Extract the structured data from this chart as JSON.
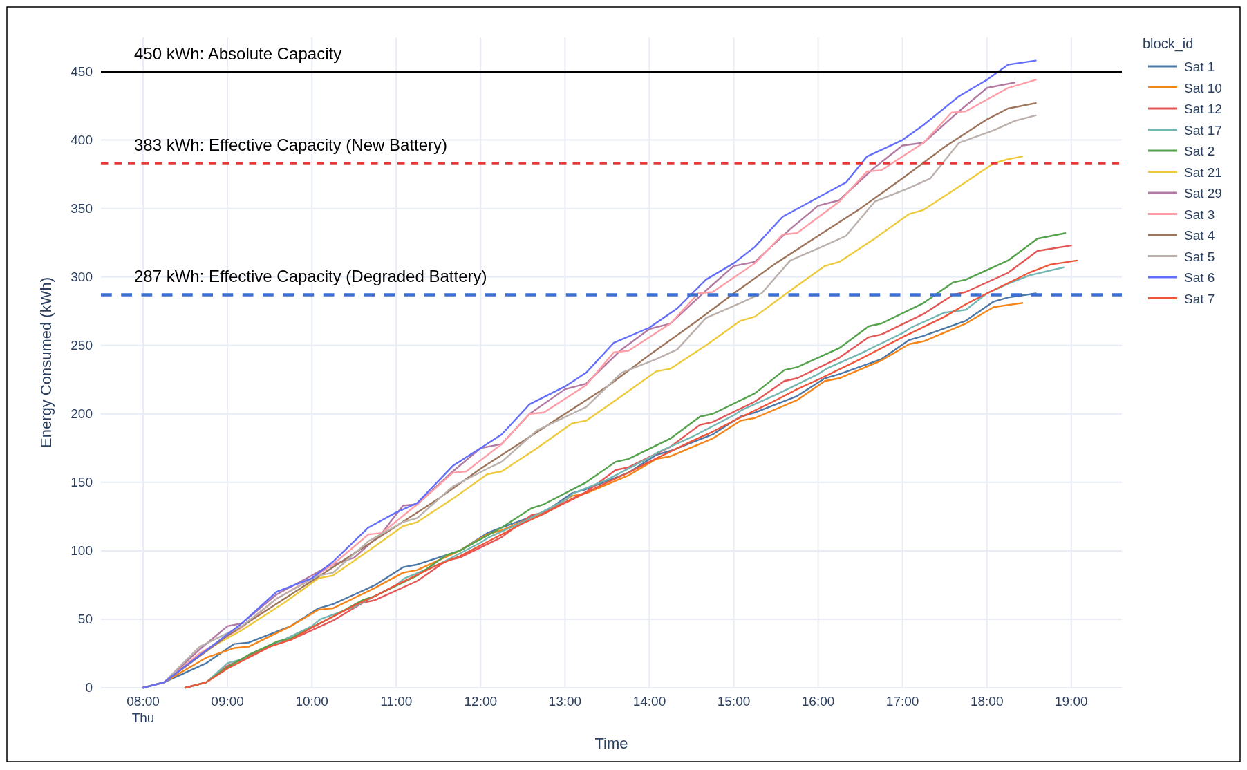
{
  "chart_data": {
    "type": "line",
    "xlabel": "Time",
    "ylabel": "Energy Consumed (kWh)",
    "legend_title": "block_id",
    "legend": "right",
    "grid": true,
    "line_style": "solid",
    "marker": "none",
    "xlim": [
      7.5,
      19.6
    ],
    "ylim": [
      0,
      475
    ],
    "xticks": [
      {
        "value": 8,
        "label": "08:00\nThu"
      },
      {
        "value": 9,
        "label": "09:00"
      },
      {
        "value": 10,
        "label": "10:00"
      },
      {
        "value": 11,
        "label": "11:00"
      },
      {
        "value": 12,
        "label": "12:00"
      },
      {
        "value": 13,
        "label": "13:00"
      },
      {
        "value": 14,
        "label": "14:00"
      },
      {
        "value": 15,
        "label": "15:00"
      },
      {
        "value": 16,
        "label": "16:00"
      },
      {
        "value": 17,
        "label": "17:00"
      },
      {
        "value": 18,
        "label": "18:00"
      },
      {
        "value": 19,
        "label": "19:00"
      }
    ],
    "yticks": [
      0,
      50,
      100,
      150,
      200,
      250,
      300,
      350,
      400,
      450
    ],
    "ref_lines": [
      {
        "axis": "y",
        "value": 450,
        "label": "450 kWh: Absolute Capacity",
        "color": "#000000",
        "line_style": "solid"
      },
      {
        "axis": "y",
        "value": 383,
        "label": "383 kWh: Effective Capacity (New Battery)",
        "color": "#e53935",
        "line_style": "dashed"
      },
      {
        "axis": "y",
        "value": 287,
        "label": "287 kWh: Effective Capacity (Degraded Battery)",
        "color": "#3d6fd1",
        "line_style": "dashed"
      }
    ],
    "series": [
      {
        "name": "Sat 1",
        "color": "#4c78a8",
        "x": [
          8,
          8.25,
          8.75,
          9.08,
          9.25,
          9.75,
          10.08,
          10.25,
          10.75,
          11.08,
          11.25,
          11.75,
          12.08,
          12.25,
          12.75,
          13.08,
          13.25,
          13.75,
          14.08,
          14.25,
          14.75,
          15.08,
          15.25,
          15.75,
          16.08,
          16.25,
          16.75,
          17.08,
          17.25,
          17.75,
          18.08,
          18.25,
          18.58
        ],
        "values": [
          0,
          4,
          18,
          32,
          33,
          45,
          58,
          61,
          75,
          88,
          90,
          100,
          113,
          117,
          128,
          142,
          145,
          157,
          170,
          173,
          185,
          198,
          201,
          213,
          226,
          229,
          240,
          254,
          257,
          268,
          282,
          285,
          288
        ]
      },
      {
        "name": "Sat 10",
        "color": "#f58518",
        "x": [
          8,
          8.25,
          8.75,
          9.08,
          9.25,
          9.75,
          10.08,
          10.25,
          10.75,
          11.08,
          11.25,
          11.75,
          12.08,
          12.25,
          12.75,
          13.08,
          13.25,
          13.75,
          14.08,
          14.25,
          14.75,
          15.08,
          15.25,
          15.75,
          16.08,
          16.25,
          16.75,
          17.08,
          17.25,
          17.75,
          18.08,
          18.42
        ],
        "values": [
          0,
          4,
          22,
          29,
          30,
          45,
          57,
          58,
          73,
          84,
          86,
          100,
          112,
          115,
          128,
          140,
          142,
          155,
          167,
          169,
          182,
          195,
          197,
          210,
          224,
          226,
          239,
          251,
          253,
          266,
          278,
          281
        ]
      },
      {
        "name": "Sat 12",
        "color": "#e45756",
        "x": [
          8.5,
          8.75,
          9,
          9.25,
          9.6,
          9.75,
          10.25,
          10.6,
          10.75,
          11.25,
          11.6,
          11.75,
          12.25,
          12.6,
          12.75,
          13.25,
          13.6,
          13.75,
          14.25,
          14.6,
          14.75,
          15.25,
          15.6,
          15.75,
          16.25,
          16.6,
          16.75,
          17.25,
          17.6,
          17.75,
          18.25,
          18.6,
          19
        ],
        "values": [
          0,
          4,
          16,
          23,
          33,
          35,
          49,
          62,
          64,
          78,
          93,
          95,
          110,
          126,
          128,
          143,
          159,
          161,
          176,
          192,
          194,
          209,
          224,
          226,
          241,
          256,
          258,
          273,
          287,
          289,
          303,
          319,
          323
        ]
      },
      {
        "name": "Sat 17",
        "color": "#72b7b2",
        "x": [
          8.5,
          8.75,
          9,
          9.25,
          9.5,
          10,
          10.1,
          10.5,
          11,
          11.1,
          11.5,
          12,
          12.1,
          12.5,
          13,
          13.1,
          13.5,
          14,
          14.1,
          14.5,
          15,
          15.1,
          15.5,
          16,
          16.1,
          16.5,
          17,
          17.1,
          17.5,
          17.75,
          18,
          18.25,
          18.5,
          18.91
        ],
        "values": [
          0,
          4,
          18,
          22,
          30,
          45,
          50,
          59,
          75,
          80,
          90,
          106,
          110,
          121,
          137,
          142,
          152,
          168,
          172,
          183,
          199,
          203,
          214,
          229,
          233,
          244,
          259,
          263,
          274,
          276,
          288,
          295,
          301,
          307
        ]
      },
      {
        "name": "Sat 2",
        "color": "#54a24b",
        "x": [
          8.5,
          8.75,
          9,
          9.25,
          9.6,
          9.75,
          10.25,
          10.6,
          10.75,
          11.25,
          11.6,
          11.75,
          12.25,
          12.6,
          12.75,
          13.25,
          13.6,
          13.75,
          14.25,
          14.6,
          14.75,
          15.25,
          15.6,
          15.75,
          16.25,
          16.6,
          16.75,
          17.25,
          17.6,
          17.75,
          18.25,
          18.6,
          18.93
        ],
        "values": [
          0,
          4,
          15,
          24,
          34,
          36,
          52,
          64,
          67,
          82,
          97,
          100,
          117,
          131,
          134,
          150,
          165,
          167,
          182,
          198,
          200,
          215,
          232,
          234,
          248,
          264,
          266,
          281,
          296,
          298,
          312,
          328,
          332
        ]
      },
      {
        "name": "Sat 21",
        "color": "#eeca3b",
        "x": [
          8,
          8.25,
          8.67,
          9.17,
          9.67,
          10.08,
          10.25,
          10.67,
          11.08,
          11.25,
          11.67,
          12.08,
          12.25,
          12.67,
          13.08,
          13.25,
          13.67,
          14.08,
          14.25,
          14.67,
          15.08,
          15.25,
          15.67,
          16.08,
          16.25,
          16.67,
          17.08,
          17.25,
          17.67,
          18.08,
          18.25,
          18.42
        ],
        "values": [
          0,
          4,
          25,
          42,
          62,
          80,
          82,
          100,
          118,
          121,
          138,
          156,
          158,
          175,
          193,
          195,
          213,
          231,
          233,
          250,
          268,
          271,
          290,
          308,
          311,
          328,
          346,
          349,
          366,
          383,
          386,
          388
        ]
      },
      {
        "name": "Sat 29",
        "color": "#b279a2",
        "x": [
          8,
          8.25,
          8.67,
          9,
          9.17,
          9.58,
          10,
          10.17,
          10.5,
          10.83,
          11.08,
          11.25,
          11.67,
          12,
          12.25,
          12.58,
          13,
          13.25,
          13.67,
          14,
          14.25,
          14.67,
          15,
          15.25,
          15.67,
          16,
          16.25,
          16.67,
          17,
          17.25,
          17.67,
          18,
          18.33
        ],
        "values": [
          0,
          4,
          28,
          45,
          47,
          68,
          82,
          88,
          95,
          113,
          133,
          134,
          158,
          175,
          178,
          200,
          218,
          222,
          247,
          262,
          266,
          290,
          308,
          311,
          335,
          352,
          356,
          380,
          396,
          398,
          421,
          438,
          442
        ]
      },
      {
        "name": "Sat 3",
        "color": "#ff9da6",
        "x": [
          8,
          8.25,
          8.67,
          9.17,
          9.58,
          10,
          10.25,
          10.67,
          10.83,
          11.25,
          11.67,
          11.83,
          12.25,
          12.58,
          12.75,
          13.25,
          13.58,
          13.75,
          14.25,
          14.58,
          14.75,
          15.25,
          15.58,
          15.75,
          16.25,
          16.58,
          16.75,
          17.25,
          17.58,
          17.75,
          18.25,
          18.58
        ],
        "values": [
          0,
          4,
          25,
          44,
          65,
          80,
          90,
          112,
          113,
          134,
          157,
          158,
          178,
          200,
          201,
          221,
          245,
          246,
          266,
          288,
          289,
          310,
          331,
          332,
          355,
          377,
          378,
          398,
          420,
          421,
          438,
          444
        ]
      },
      {
        "name": "Sat 4",
        "color": "#9d755d",
        "x": [
          8,
          8.25,
          9,
          9.5,
          10,
          10.5,
          11,
          11.5,
          12,
          12.5,
          13,
          13.5,
          14,
          14.5,
          15,
          15.5,
          16,
          16.5,
          17,
          17.5,
          18,
          18.25,
          18.58
        ],
        "values": [
          0,
          4,
          38,
          58,
          78,
          98,
          118,
          138,
          160,
          180,
          200,
          220,
          243,
          265,
          288,
          310,
          330,
          350,
          372,
          395,
          415,
          423,
          427
        ]
      },
      {
        "name": "Sat 5",
        "color": "#bab0ac",
        "x": [
          8,
          8.25,
          8.67,
          9.17,
          9.58,
          10.08,
          10.25,
          10.67,
          11.08,
          11.25,
          11.67,
          12.08,
          12.25,
          12.67,
          13.08,
          13.25,
          13.67,
          14.08,
          14.33,
          14.67,
          15.08,
          15.33,
          15.67,
          16.08,
          16.33,
          16.67,
          17.08,
          17.33,
          17.67,
          18.08,
          18.33,
          18.58
        ],
        "values": [
          0,
          4,
          30,
          45,
          65,
          82,
          84,
          107,
          121,
          124,
          147,
          160,
          165,
          188,
          200,
          205,
          230,
          240,
          247,
          270,
          281,
          288,
          312,
          323,
          330,
          355,
          365,
          372,
          398,
          407,
          414,
          418
        ]
      },
      {
        "name": "Sat 6",
        "color": "#636efa",
        "x": [
          8,
          8.25,
          9.17,
          9.58,
          10,
          10.25,
          10.67,
          11,
          11.25,
          11.67,
          12,
          12.25,
          12.58,
          13,
          13.25,
          13.58,
          14,
          14.33,
          14.67,
          15,
          15.25,
          15.58,
          16,
          16.33,
          16.58,
          17,
          17.25,
          17.67,
          18,
          18.25,
          18.58
        ],
        "values": [
          0,
          4,
          47,
          70,
          80,
          92,
          117,
          128,
          135,
          162,
          175,
          185,
          207,
          220,
          230,
          252,
          263,
          277,
          298,
          310,
          322,
          344,
          358,
          369,
          388,
          400,
          411,
          432,
          444,
          455,
          458
        ]
      },
      {
        "name": "Sat 7",
        "color": "#ef553b",
        "x": [
          8.5,
          8.75,
          9,
          9.5,
          9.75,
          10,
          10.5,
          10.75,
          11,
          11.5,
          11.75,
          12,
          12.5,
          12.75,
          13,
          13.5,
          13.75,
          14,
          14.5,
          14.75,
          15,
          15.5,
          15.75,
          16,
          16.5,
          16.75,
          17,
          17.5,
          17.75,
          18,
          18.5,
          18.75,
          19.07
        ],
        "values": [
          0,
          4,
          14,
          30,
          35,
          44,
          60,
          67,
          75,
          90,
          96,
          104,
          120,
          127,
          135,
          150,
          157,
          165,
          180,
          187,
          195,
          210,
          218,
          225,
          240,
          248,
          256,
          271,
          280,
          288,
          303,
          309,
          312
        ]
      }
    ]
  }
}
